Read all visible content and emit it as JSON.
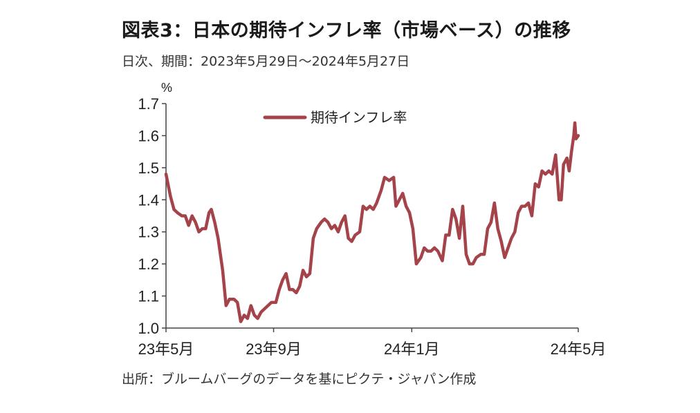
{
  "title": "図表3：日本の期待インフレ率（市場ベース）の推移",
  "subtitle": "日次、期間：2023年5月29日～2024年5月27日",
  "source": "出所：ブルームバーグのデータを基にピクテ・ジャパン作成",
  "colors": {
    "series": "#a5434a",
    "axis": "#444444"
  },
  "chart_data": {
    "type": "line",
    "ylabel": "%",
    "ylim": [
      1.0,
      1.7
    ],
    "yticks": [
      "1.0",
      "1.1",
      "1.2",
      "1.3",
      "1.4",
      "1.5",
      "1.6",
      "1.7"
    ],
    "xlim": [
      "2023-05-29",
      "2024-05-27"
    ],
    "xticks": [
      {
        "date": "2023-05-29",
        "label": "23年5月"
      },
      {
        "date": "2023-09-01",
        "label": "23年9月"
      },
      {
        "date": "2024-01-01",
        "label": "24年1月"
      },
      {
        "date": "2024-05-27",
        "label": "24年5月"
      }
    ],
    "grid": false,
    "legend_position": "top",
    "series": [
      {
        "name": "期待インフレ率",
        "points": [
          [
            "2023-05-29",
            1.48
          ],
          [
            "2023-06-02",
            1.41
          ],
          [
            "2023-06-05",
            1.37
          ],
          [
            "2023-06-08",
            1.36
          ],
          [
            "2023-06-12",
            1.35
          ],
          [
            "2023-06-15",
            1.35
          ],
          [
            "2023-06-18",
            1.32
          ],
          [
            "2023-06-21",
            1.35
          ],
          [
            "2023-06-24",
            1.33
          ],
          [
            "2023-06-27",
            1.3
          ],
          [
            "2023-06-30",
            1.31
          ],
          [
            "2023-07-03",
            1.31
          ],
          [
            "2023-07-06",
            1.36
          ],
          [
            "2023-07-08",
            1.37
          ],
          [
            "2023-07-11",
            1.33
          ],
          [
            "2023-07-14",
            1.28
          ],
          [
            "2023-07-18",
            1.18
          ],
          [
            "2023-07-21",
            1.07
          ],
          [
            "2023-07-24",
            1.09
          ],
          [
            "2023-07-28",
            1.09
          ],
          [
            "2023-07-31",
            1.08
          ],
          [
            "2023-08-03",
            1.02
          ],
          [
            "2023-08-06",
            1.04
          ],
          [
            "2023-08-09",
            1.03
          ],
          [
            "2023-08-12",
            1.07
          ],
          [
            "2023-08-15",
            1.04
          ],
          [
            "2023-08-18",
            1.03
          ],
          [
            "2023-08-21",
            1.05
          ],
          [
            "2023-08-24",
            1.06
          ],
          [
            "2023-08-27",
            1.07
          ],
          [
            "2023-08-30",
            1.08
          ],
          [
            "2023-09-03",
            1.08
          ],
          [
            "2023-09-06",
            1.12
          ],
          [
            "2023-09-09",
            1.15
          ],
          [
            "2023-09-12",
            1.17
          ],
          [
            "2023-09-15",
            1.12
          ],
          [
            "2023-09-18",
            1.12
          ],
          [
            "2023-09-21",
            1.11
          ],
          [
            "2023-09-24",
            1.13
          ],
          [
            "2023-09-27",
            1.18
          ],
          [
            "2023-09-30",
            1.16
          ],
          [
            "2023-10-03",
            1.17
          ],
          [
            "2023-10-06",
            1.28
          ],
          [
            "2023-10-09",
            1.31
          ],
          [
            "2023-10-13",
            1.33
          ],
          [
            "2023-10-16",
            1.34
          ],
          [
            "2023-10-19",
            1.33
          ],
          [
            "2023-10-22",
            1.31
          ],
          [
            "2023-10-25",
            1.32
          ],
          [
            "2023-10-28",
            1.3
          ],
          [
            "2023-10-31",
            1.33
          ],
          [
            "2023-11-03",
            1.35
          ],
          [
            "2023-11-06",
            1.28
          ],
          [
            "2023-11-09",
            1.27
          ],
          [
            "2023-11-12",
            1.29
          ],
          [
            "2023-11-16",
            1.3
          ],
          [
            "2023-11-19",
            1.38
          ],
          [
            "2023-11-22",
            1.37
          ],
          [
            "2023-11-25",
            1.38
          ],
          [
            "2023-11-28",
            1.37
          ],
          [
            "2023-12-01",
            1.39
          ],
          [
            "2023-12-05",
            1.43
          ],
          [
            "2023-12-08",
            1.47
          ],
          [
            "2023-12-12",
            1.46
          ],
          [
            "2023-12-16",
            1.47
          ],
          [
            "2023-12-18",
            1.38
          ],
          [
            "2023-12-21",
            1.4
          ],
          [
            "2023-12-24",
            1.42
          ],
          [
            "2023-12-27",
            1.38
          ],
          [
            "2023-12-30",
            1.36
          ],
          [
            "2024-01-02",
            1.31
          ],
          [
            "2024-01-05",
            1.2
          ],
          [
            "2024-01-09",
            1.22
          ],
          [
            "2024-01-12",
            1.25
          ],
          [
            "2024-01-15",
            1.24
          ],
          [
            "2024-01-18",
            1.24
          ],
          [
            "2024-01-21",
            1.25
          ],
          [
            "2024-01-24",
            1.24
          ],
          [
            "2024-01-28",
            1.21
          ],
          [
            "2024-01-31",
            1.29
          ],
          [
            "2024-02-03",
            1.29
          ],
          [
            "2024-02-06",
            1.37
          ],
          [
            "2024-02-09",
            1.34
          ],
          [
            "2024-02-12",
            1.28
          ],
          [
            "2024-02-15",
            1.38
          ],
          [
            "2024-02-18",
            1.23
          ],
          [
            "2024-02-21",
            1.2
          ],
          [
            "2024-02-24",
            1.2
          ],
          [
            "2024-02-27",
            1.22
          ],
          [
            "2024-03-02",
            1.23
          ],
          [
            "2024-03-05",
            1.23
          ],
          [
            "2024-03-08",
            1.31
          ],
          [
            "2024-03-11",
            1.33
          ],
          [
            "2024-03-14",
            1.39
          ],
          [
            "2024-03-17",
            1.31
          ],
          [
            "2024-03-20",
            1.27
          ],
          [
            "2024-03-23",
            1.22
          ],
          [
            "2024-03-26",
            1.25
          ],
          [
            "2024-03-29",
            1.28
          ],
          [
            "2024-04-01",
            1.3
          ],
          [
            "2024-04-04",
            1.36
          ],
          [
            "2024-04-07",
            1.38
          ],
          [
            "2024-04-10",
            1.38
          ],
          [
            "2024-04-13",
            1.39
          ],
          [
            "2024-04-16",
            1.35
          ],
          [
            "2024-04-19",
            1.45
          ],
          [
            "2024-04-22",
            1.44
          ],
          [
            "2024-04-25",
            1.49
          ],
          [
            "2024-04-28",
            1.48
          ],
          [
            "2024-05-01",
            1.49
          ],
          [
            "2024-05-04",
            1.48
          ],
          [
            "2024-05-07",
            1.54
          ],
          [
            "2024-05-10",
            1.4
          ],
          [
            "2024-05-12",
            1.4
          ],
          [
            "2024-05-14",
            1.51
          ],
          [
            "2024-05-17",
            1.53
          ],
          [
            "2024-05-19",
            1.49
          ],
          [
            "2024-05-21",
            1.55
          ],
          [
            "2024-05-23",
            1.6
          ],
          [
            "2024-05-24",
            1.64
          ],
          [
            "2024-05-25",
            1.59
          ],
          [
            "2024-05-27",
            1.6
          ]
        ]
      }
    ]
  }
}
